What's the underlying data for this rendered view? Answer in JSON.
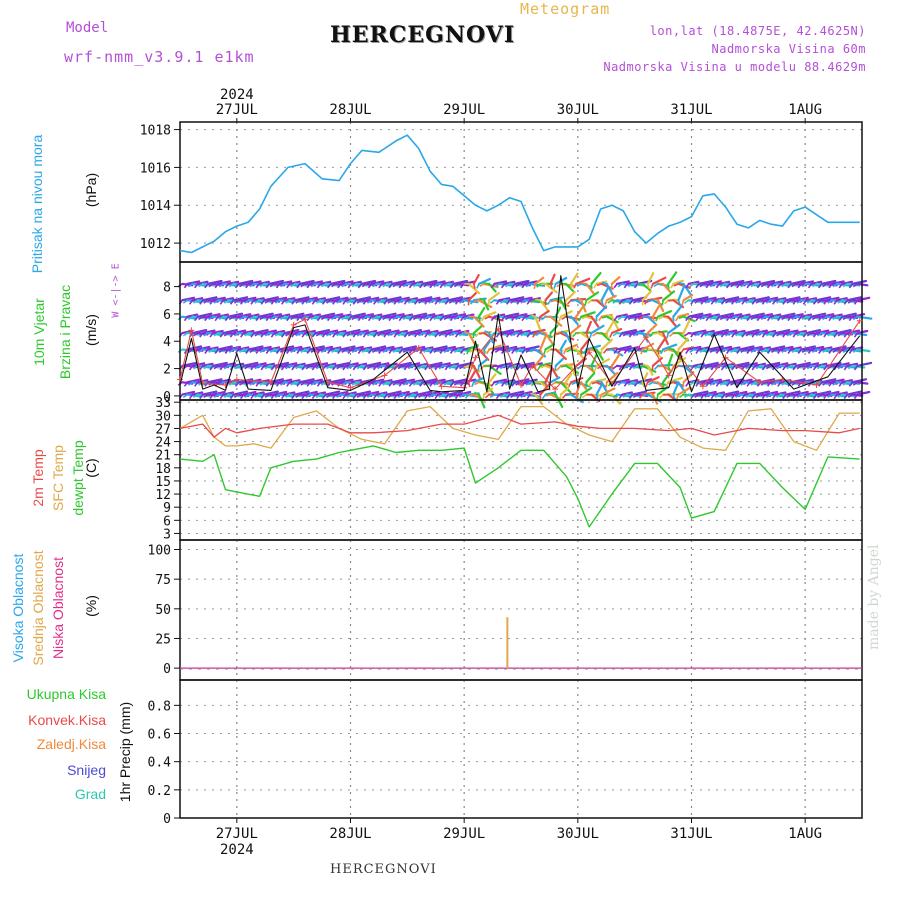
{
  "header": {
    "model_label": "Model",
    "model_name": "wrf-nmm_v3.9.1 e1km",
    "meteogram_label": "Meteogram",
    "title": "HERCEGNOVI",
    "lonlat": "lon,lat (18.4875E, 42.4625N)",
    "elevation": "Nadmorska Visina 60m",
    "model_elevation": "Nadmorska Visina u modelu 88.4629m"
  },
  "footer": {
    "title": "HERCEGNOVI",
    "made_by": "made by Angel"
  },
  "time_axis": {
    "year": "2024",
    "days": [
      "27JUL",
      "28JUL",
      "29JUL",
      "30JUL",
      "31JUL",
      "1AUG"
    ]
  },
  "colors": {
    "pressure": "#2aa7e8",
    "wind_speed": "#111111",
    "gust": "#e84a4a",
    "temp_2m": "#e84a4a",
    "temp_sfc": "#e0a84a",
    "dewpoint": "#2ec82e",
    "cloud_high": "#2aa7e8",
    "cloud_mid": "#e0a84a",
    "cloud_low": "#e0308a",
    "precip_total": "#2ec82e",
    "precip_conv": "#e84a4a",
    "precip_frozen": "#f08a3a",
    "snow": "#4a4ad6",
    "graupel": "#2ec8b0",
    "wind_barbs": "#8a2ad6"
  },
  "panels": {
    "pressure": {
      "label": "Pritisak na nivou mora",
      "unit": "(hPa)",
      "ticks": [
        "1018",
        "1016",
        "1014",
        "1012"
      ]
    },
    "wind": {
      "label1": "10m Vjetar",
      "label2": "Brzina i Pravac",
      "unit": "(m/s)",
      "ticks": [
        "8",
        "6",
        "4",
        "2",
        "0"
      ],
      "compass": "W <-|-> E"
    },
    "temp": {
      "label_2m": "2m Temp",
      "label_sfc": "SFC Temp",
      "label_dew": "dewpt Temp",
      "unit": "(C)",
      "ticks": [
        "33",
        "30",
        "27",
        "24",
        "21",
        "18",
        "15",
        "12",
        "9",
        "6",
        "3"
      ]
    },
    "cloud": {
      "label_high": "Visoka Oblacnost",
      "label_mid": "Srednja Oblacnost",
      "label_low": "Niska Oblacnost",
      "unit": "(%)",
      "ticks": [
        "100",
        "75",
        "50",
        "25",
        "0"
      ]
    },
    "precip": {
      "labels": [
        "Ukupna Kisa",
        "Konvek.Kisa",
        "Zaledj.Kisa",
        "Snijeg",
        "Grad"
      ],
      "unit": "1hr Precip (mm)",
      "ticks": [
        "0.8",
        "0.6",
        "0.4",
        "0.2",
        "0"
      ]
    }
  },
  "chart_data": [
    {
      "type": "line",
      "title": "Pritisak na nivou mora",
      "ylabel": "(hPa)",
      "ylim": [
        1011,
        1018.4
      ],
      "x_unit": "days since 27JUL 00UTC",
      "series": [
        {
          "name": "Pritisak na nivou mora",
          "x": [
            -0.5,
            -0.4,
            -0.3,
            -0.2,
            -0.1,
            0.0,
            0.1,
            0.2,
            0.3,
            0.45,
            0.6,
            0.75,
            0.9,
            1.0,
            1.1,
            1.25,
            1.4,
            1.5,
            1.6,
            1.7,
            1.8,
            1.9,
            2.0,
            2.1,
            2.2,
            2.3,
            2.4,
            2.5,
            2.6,
            2.7,
            2.8,
            2.9,
            3.0,
            3.1,
            3.2,
            3.3,
            3.4,
            3.5,
            3.6,
            3.7,
            3.8,
            3.9,
            4.0,
            4.1,
            4.2,
            4.3,
            4.4,
            4.5,
            4.6,
            4.7,
            4.8,
            4.9,
            5.0,
            5.1,
            5.2,
            5.3,
            5.48
          ],
          "values": [
            1011.6,
            1011.5,
            1011.8,
            1012.1,
            1012.6,
            1012.9,
            1013.1,
            1013.8,
            1015.0,
            1016.0,
            1016.2,
            1015.4,
            1015.3,
            1016.2,
            1016.9,
            1016.8,
            1017.4,
            1017.7,
            1017.0,
            1015.8,
            1015.1,
            1015.0,
            1014.5,
            1014.0,
            1013.7,
            1014.0,
            1014.4,
            1014.2,
            1012.8,
            1011.6,
            1011.8,
            1011.8,
            1011.8,
            1012.2,
            1013.8,
            1014.0,
            1013.7,
            1012.6,
            1012.0,
            1012.5,
            1012.9,
            1013.1,
            1013.4,
            1014.5,
            1014.6,
            1013.9,
            1013.0,
            1012.8,
            1013.2,
            1013.0,
            1012.9,
            1013.7,
            1013.9,
            1013.5,
            1013.1,
            1013.1,
            1013.1
          ]
        }
      ]
    },
    {
      "type": "line",
      "title": "10m Vjetar",
      "ylabel": "(m/s)",
      "ylim": [
        -0.3,
        9.8
      ],
      "x_unit": "days since 27JUL 00UTC",
      "series": [
        {
          "name": "Brzina i Pravac",
          "x": [
            -0.5,
            -0.4,
            -0.3,
            -0.2,
            -0.1,
            0.0,
            0.1,
            0.3,
            0.5,
            0.6,
            0.8,
            1.0,
            1.2,
            1.5,
            1.7,
            1.8,
            2.0,
            2.1,
            2.2,
            2.3,
            2.4,
            2.5,
            2.65,
            2.75,
            2.85,
            3.0,
            3.1,
            3.3,
            3.5,
            3.6,
            3.8,
            3.9,
            4.0,
            4.2,
            4.4,
            4.6,
            4.9,
            5.2,
            5.48
          ],
          "values": [
            0.8,
            4.2,
            0.5,
            0.8,
            0.4,
            3.1,
            0.5,
            0.4,
            5.0,
            5.2,
            0.6,
            0.4,
            1.2,
            3.2,
            0.4,
            0.3,
            0.4,
            4.0,
            0.3,
            6.0,
            0.5,
            3.0,
            0.3,
            0.5,
            8.8,
            0.6,
            4.2,
            0.7,
            3.5,
            0.4,
            0.6,
            3.2,
            0.3,
            4.5,
            0.6,
            3.2,
            0.5,
            1.4,
            4.4
          ]
        },
        {
          "name": "Gust",
          "x": [
            -0.5,
            -0.4,
            -0.3,
            -0.1,
            0.0,
            0.3,
            0.5,
            0.6,
            0.8,
            1.0,
            1.3,
            1.6,
            1.8,
            2.0,
            2.1,
            2.3,
            2.5,
            2.6,
            2.8,
            3.1,
            3.3,
            3.6,
            3.8,
            3.9,
            4.1,
            4.3,
            4.6,
            4.8,
            5.1,
            5.48
          ],
          "values": [
            1.2,
            4.8,
            0.9,
            0.8,
            1.2,
            1.0,
            5.2,
            5.6,
            1.0,
            0.6,
            1.5,
            3.5,
            0.7,
            0.6,
            2.8,
            4.9,
            0.8,
            2.2,
            0.5,
            3.2,
            0.9,
            4.3,
            1.5,
            2.9,
            0.7,
            2.8,
            1.0,
            1.2,
            0.8,
            5.5
          ]
        }
      ]
    },
    {
      "type": "line",
      "title": "2m Temp / SFC Temp / dewpt Temp",
      "ylabel": "(C)",
      "ylim": [
        1.5,
        33.5
      ],
      "x_unit": "days since 27JUL 00UTC",
      "series": [
        {
          "name": "2m Temp",
          "x": [
            -0.5,
            -0.3,
            -0.2,
            -0.1,
            0.0,
            0.2,
            0.5,
            0.8,
            1.0,
            1.2,
            1.5,
            1.8,
            2.0,
            2.3,
            2.5,
            2.8,
            3.0,
            3.2,
            3.5,
            3.8,
            4.0,
            4.2,
            4.5,
            4.8,
            5.0,
            5.3,
            5.48
          ],
          "values": [
            27,
            28,
            25,
            27,
            26,
            27,
            28,
            28,
            26,
            26,
            26.5,
            28,
            28,
            30,
            28,
            28.5,
            27.5,
            27,
            27,
            26.5,
            27,
            25.5,
            27,
            26.5,
            26.5,
            26,
            27
          ]
        },
        {
          "name": "SFC Temp",
          "x": [
            -0.5,
            -0.3,
            -0.2,
            -0.1,
            0.0,
            0.15,
            0.3,
            0.5,
            0.7,
            0.9,
            1.1,
            1.3,
            1.5,
            1.7,
            1.9,
            2.1,
            2.3,
            2.5,
            2.7,
            2.9,
            3.1,
            3.3,
            3.5,
            3.7,
            3.9,
            4.1,
            4.3,
            4.5,
            4.7,
            4.9,
            5.1,
            5.3,
            5.48
          ],
          "values": [
            27,
            30,
            25,
            23,
            23,
            23.5,
            22.5,
            29.5,
            31,
            27,
            24.5,
            23.5,
            31,
            32,
            27,
            25.5,
            24.5,
            32,
            32,
            28,
            25.5,
            24,
            31.5,
            31.5,
            25,
            22.5,
            22,
            31,
            31.5,
            24,
            22,
            30.5,
            30.5
          ]
        },
        {
          "name": "dewpt Temp",
          "x": [
            -0.5,
            -0.3,
            -0.2,
            -0.1,
            0.0,
            0.2,
            0.3,
            0.5,
            0.7,
            0.9,
            1.0,
            1.2,
            1.4,
            1.6,
            1.8,
            2.0,
            2.1,
            2.3,
            2.5,
            2.7,
            2.9,
            3.0,
            3.1,
            3.3,
            3.5,
            3.7,
            3.9,
            4.0,
            4.2,
            4.4,
            4.6,
            4.8,
            5.0,
            5.2,
            5.48
          ],
          "values": [
            20,
            19.5,
            21,
            13,
            12.5,
            11.5,
            18,
            19.5,
            20,
            21.5,
            22,
            23,
            21.5,
            22,
            22,
            22.5,
            14.5,
            18,
            22,
            22,
            16,
            11,
            4.5,
            12,
            19,
            19,
            13.5,
            6.5,
            8,
            19,
            19,
            13.5,
            8.5,
            20.5,
            20
          ]
        }
      ]
    },
    {
      "type": "bar",
      "title": "Oblacnost",
      "ylabel": "(%)",
      "ylim": [
        -10,
        108
      ],
      "x_unit": "days since 27JUL 00UTC",
      "series": [
        {
          "name": "Visoka Oblacnost",
          "x": [
            2.75
          ],
          "values": [
            0
          ]
        },
        {
          "name": "Srednja Oblacnost",
          "x": [
            2.38
          ],
          "values": [
            43
          ]
        },
        {
          "name": "Niska Oblacnost",
          "x": [
            2.75
          ],
          "values": [
            0
          ]
        }
      ]
    },
    {
      "type": "bar",
      "title": "1hr Precip",
      "ylabel": "(mm)",
      "ylim": [
        0,
        0.98
      ],
      "x_unit": "days since 27JUL 00UTC",
      "series": [
        {
          "name": "Ukupna Kisa",
          "x": [],
          "values": []
        },
        {
          "name": "Konvek.Kisa",
          "x": [],
          "values": []
        },
        {
          "name": "Zaledj.Kisa",
          "x": [],
          "values": []
        },
        {
          "name": "Snijeg",
          "x": [],
          "values": []
        },
        {
          "name": "Grad",
          "x": [],
          "values": []
        }
      ]
    }
  ]
}
